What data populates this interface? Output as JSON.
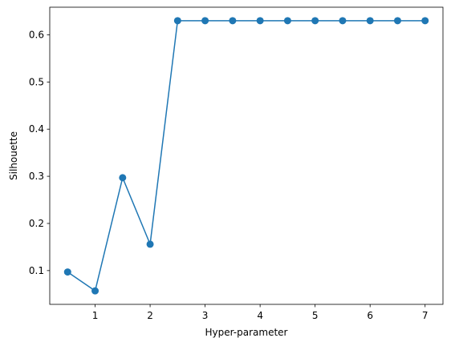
{
  "chart_data": {
    "type": "line",
    "xlabel": "Hyper-parameter",
    "ylabel": "Silhouette",
    "x": [
      0.5,
      1.0,
      1.5,
      2.0,
      2.5,
      3.0,
      3.5,
      4.0,
      4.5,
      5.0,
      5.5,
      6.0,
      6.5,
      7.0
    ],
    "series": [
      {
        "values": [
          0.097,
          0.057,
          0.297,
          0.156,
          0.63,
          0.63,
          0.63,
          0.63,
          0.63,
          0.63,
          0.63,
          0.63,
          0.63,
          0.63
        ],
        "color": "#1f77b4",
        "marker": "circle"
      }
    ],
    "xlim": [
      0.175,
      7.325
    ],
    "ylim": [
      0.0284,
      0.6586
    ],
    "xticks": [
      1,
      2,
      3,
      4,
      5,
      6,
      7
    ],
    "xtick_labels": [
      "1",
      "2",
      "3",
      "4",
      "5",
      "6",
      "7"
    ],
    "yticks": [
      0.1,
      0.2,
      0.3,
      0.4,
      0.5,
      0.6
    ],
    "ytick_labels": [
      "0.1",
      "0.2",
      "0.3",
      "0.4",
      "0.5",
      "0.6"
    ],
    "grid": false,
    "legend": false
  }
}
